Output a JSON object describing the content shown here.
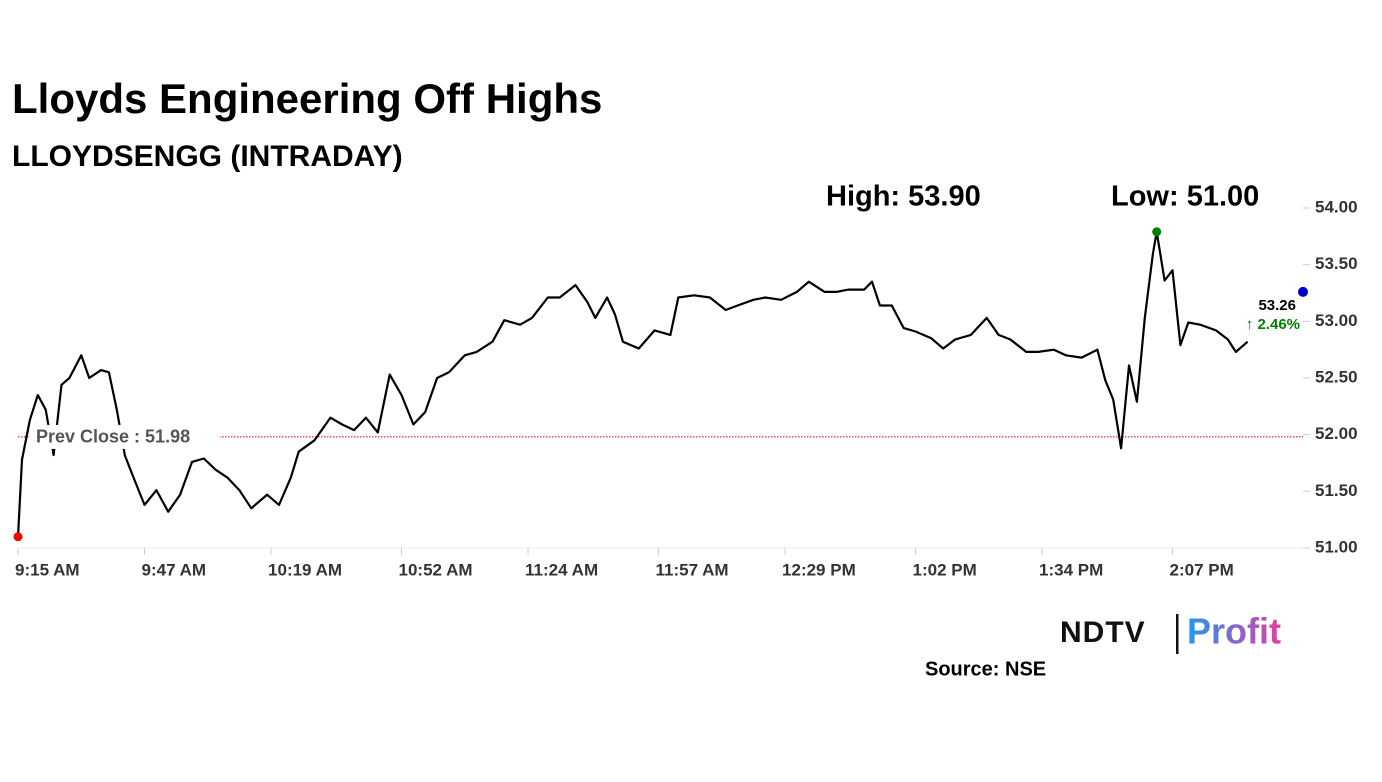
{
  "chart_data": {
    "type": "line",
    "title": "Lloyds Engineering Off Highs",
    "subtitle": "LLOYDSENGG (INTRADAY)",
    "high_label": "High: 53.90",
    "low_label": "Low: 51.00",
    "prev_close": 51.98,
    "prev_close_label": "Prev Close : 51.98",
    "last_value": 53.26,
    "change_label": "↑ 2.46%",
    "source": "Source: NSE",
    "logo": {
      "left": "NDTV",
      "right": "Profit"
    },
    "xlim": [
      "9:15 AM",
      "2:40 PM"
    ],
    "xticks": [
      "9:15 AM",
      "9:47 AM",
      "10:19 AM",
      "10:52 AM",
      "11:24 AM",
      "11:57 AM",
      "12:29 PM",
      "1:02 PM",
      "1:34 PM",
      "2:07 PM"
    ],
    "ylim": [
      51,
      54
    ],
    "yticks": [
      {
        "value": 51,
        "label": "51.00"
      },
      {
        "value": 51.5,
        "label": "51.50"
      },
      {
        "value": 52,
        "label": "52.00"
      },
      {
        "value": 52.5,
        "label": "52.50"
      },
      {
        "value": 53,
        "label": "53.00"
      },
      {
        "value": 53.5,
        "label": "53.50"
      },
      {
        "value": 54,
        "label": "54.00"
      }
    ],
    "x": [
      "9:15 AM",
      "9:16 AM",
      "9:18 AM",
      "9:20 AM",
      "9:22 AM",
      "9:24 AM",
      "9:26 AM",
      "9:28 AM",
      "9:31 AM",
      "9:33 AM",
      "9:36 AM",
      "9:38 AM",
      "9:40 AM",
      "9:42 AM",
      "9:44 AM",
      "9:47 AM",
      "9:50 AM",
      "9:53 AM",
      "9:56 AM",
      "9:59 AM",
      "10:02 AM",
      "10:05 AM",
      "10:08 AM",
      "10:11 AM",
      "10:14 AM",
      "10:18 AM",
      "10:21 AM",
      "10:24 AM",
      "10:26 AM",
      "10:30 AM",
      "10:34 AM",
      "10:37 AM",
      "10:40 AM",
      "10:43 AM",
      "10:46 AM",
      "10:49 AM",
      "10:52 AM",
      "10:55 AM",
      "10:58 AM",
      "11:01 AM",
      "11:04 AM",
      "11:08 AM",
      "11:11 AM",
      "11:15 AM",
      "11:18 AM",
      "11:22 AM",
      "11:25 AM",
      "11:29 AM",
      "11:32 AM",
      "11:36 AM",
      "11:39 AM",
      "11:41 AM",
      "11:44 AM",
      "11:46 AM",
      "11:48 AM",
      "11:52 AM",
      "11:56 AM",
      "12:00 PM",
      "12:02 PM",
      "12:06 PM",
      "12:10 PM",
      "12:14 PM",
      "12:17 PM",
      "12:21 PM",
      "12:24 PM",
      "12:28 PM",
      "12:32 PM",
      "12:35 PM",
      "12:39 PM",
      "12:42 PM",
      "12:45 PM",
      "12:49 PM",
      "12:51 PM",
      "12:53 PM",
      "12:56 PM",
      "12:59 PM",
      "1:02 PM",
      "1:06 PM",
      "1:09 PM",
      "1:12 PM",
      "1:16 PM",
      "1:20 PM",
      "1:23 PM",
      "1:26 PM",
      "1:30 PM",
      "1:33 PM",
      "1:37 PM",
      "1:40 PM",
      "1:44 PM",
      "1:48 PM",
      "1:50 PM",
      "1:52 PM",
      "1:54 PM",
      "1:56 PM",
      "1:58 PM",
      "2:00 PM",
      "2:02 PM",
      "2:03 PM",
      "2:05 PM",
      "2:07 PM",
      "2:09 PM",
      "2:11 PM",
      "2:14 PM",
      "2:18 PM",
      "2:21 PM",
      "2:23 PM",
      "2:26 PM"
    ],
    "series": [
      {
        "name": "LLOYDSENGG",
        "color": "#000000",
        "values": [
          51.1,
          51.78,
          52.13,
          52.35,
          52.22,
          51.82,
          52.44,
          52.5,
          52.7,
          52.5,
          52.57,
          52.55,
          52.22,
          51.82,
          51.64,
          51.38,
          51.51,
          51.32,
          51.47,
          51.76,
          51.79,
          51.69,
          51.62,
          51.51,
          51.35,
          51.47,
          51.38,
          51.62,
          51.85,
          51.95,
          52.15,
          52.09,
          52.04,
          52.15,
          52.02,
          52.53,
          52.35,
          52.09,
          52.2,
          52.5,
          52.55,
          52.7,
          52.73,
          52.82,
          53.01,
          52.97,
          53.03,
          53.21,
          53.21,
          53.32,
          53.17,
          53.03,
          53.21,
          53.06,
          52.82,
          52.76,
          52.92,
          52.88,
          53.21,
          53.23,
          53.21,
          53.1,
          53.14,
          53.19,
          53.21,
          53.19,
          53.26,
          53.35,
          53.26,
          53.26,
          53.28,
          53.28,
          53.35,
          53.14,
          53.14,
          52.94,
          52.91,
          52.85,
          52.76,
          52.84,
          52.88,
          53.03,
          52.88,
          52.84,
          52.73,
          52.73,
          52.75,
          52.7,
          52.68,
          52.75,
          52.48,
          52.31,
          51.88,
          52.61,
          52.29,
          53.03,
          53.59,
          53.79,
          53.36,
          53.45,
          52.79,
          52.99,
          52.97,
          52.92,
          52.84,
          52.73,
          52.82
        ]
      }
    ],
    "markers": {
      "low_color": "#ff0000",
      "high_color": "#008000",
      "last_color": "#0000cc",
      "prev_close_color": "#cc0000",
      "change_color": "#008000"
    }
  }
}
